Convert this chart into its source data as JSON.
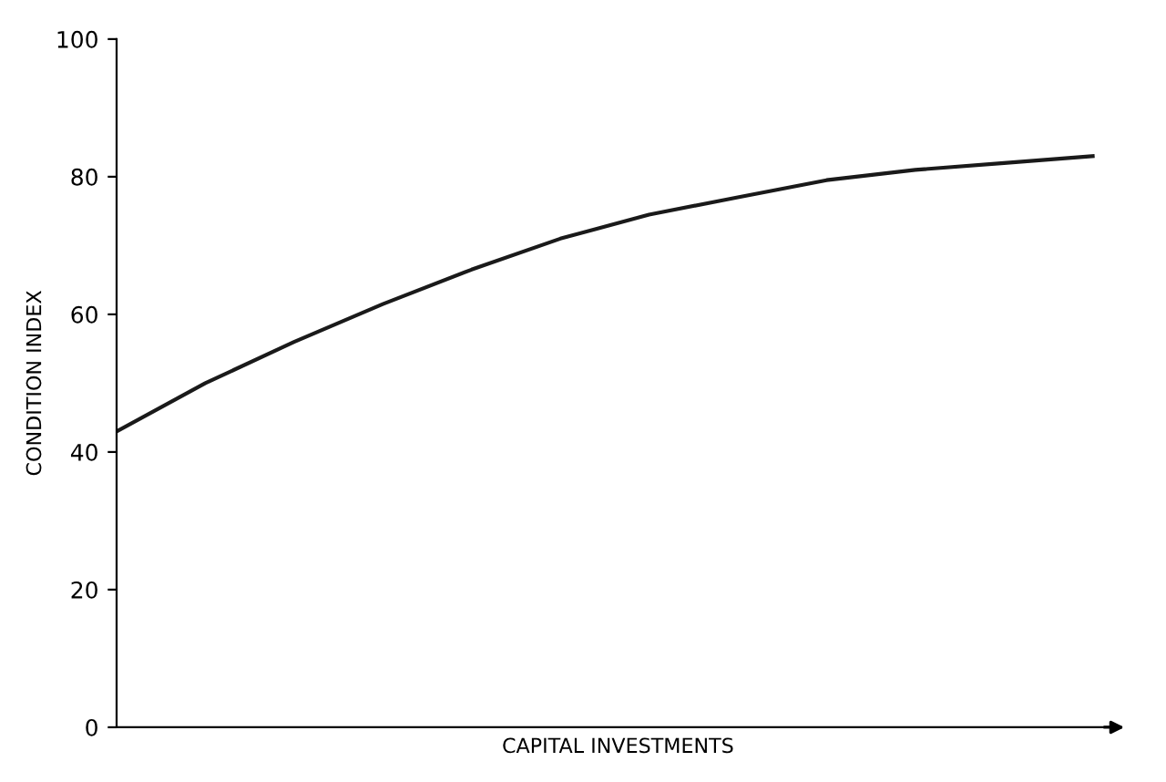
{
  "chart_data": {
    "type": "line",
    "xlabel": "CAPITAL INVESTMENTS",
    "ylabel": "CONDITION INDEX",
    "categories": [
      null,
      null,
      null,
      null,
      null,
      null,
      null,
      null,
      null,
      null,
      null,
      null
    ],
    "series": [
      {
        "color": "#1a1a1a",
        "values": [
          43,
          50,
          56,
          61.5,
          66.5,
          71,
          74.5,
          77,
          79.5,
          81,
          82,
          83
        ]
      }
    ],
    "ylim": [
      0,
      100
    ],
    "yticks": [
      0,
      20,
      40,
      60,
      80,
      100
    ],
    "tick_labels": "y",
    "grid": false,
    "legend": false,
    "marker": "none",
    "line_style": "solid"
  }
}
